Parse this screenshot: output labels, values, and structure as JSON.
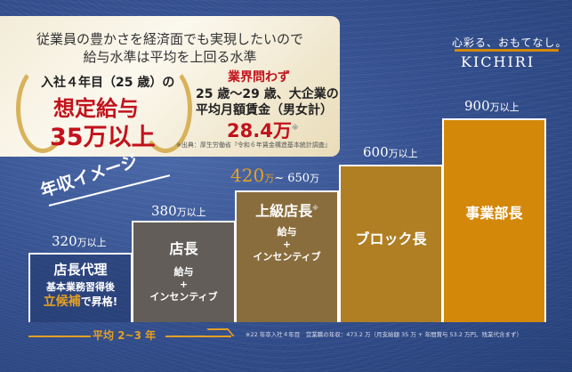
{
  "panel": {
    "lead_line1": "従業員の豊かさを経済面でも実現したいので",
    "lead_line2": "給与水準は平均を上回る水準",
    "left_sub": "入社４年目（25 歳）の",
    "left_title": "想定給与",
    "left_amount": "35万以上",
    "right_tag": "業界問わず",
    "right_line1": "25 歳〜29 歳、大企業の",
    "right_line2": "平均月額賃金（男女計）",
    "right_amount": "28.4万",
    "right_mark": "※",
    "source": "※出典：厚生労働省『令和６年賃金構造基本統計調査』"
  },
  "brand": {
    "tagline": "心彩る、おもてなし。",
    "logo": "KICHIRI"
  },
  "section_title": "年収イメージ",
  "steps": [
    {
      "price": "320",
      "unit": "万以上",
      "title": "店長代理",
      "line1": "基本業務習得後",
      "highlight": "立候補",
      "line2": "で昇格!"
    },
    {
      "price": "380",
      "unit": "万以上",
      "title": "店長",
      "pay1": "給与",
      "plus": "+",
      "pay2": "インセンティブ"
    },
    {
      "price": "420",
      "unit": "万",
      "range_end": "~ 650",
      "unit2": "万",
      "title": "上級店長",
      "mark": "※",
      "pay1": "給与",
      "plus": "+",
      "pay2": "インセンティブ"
    },
    {
      "price": "600",
      "unit": "万以上",
      "title": "ブロック長"
    },
    {
      "price": "900",
      "unit": "万以上",
      "title": "事業部長"
    }
  ],
  "timeline": "平均 2~3 年",
  "footnote": "※22 年卒入社４年目　営業職の年収：473.2 万（月支給額 35 万 + 年間賞与 53.2 万円、残業代含まず）",
  "colors": {
    "accent": "#d4880a",
    "red": "#c2121c",
    "background": "#34508f"
  }
}
